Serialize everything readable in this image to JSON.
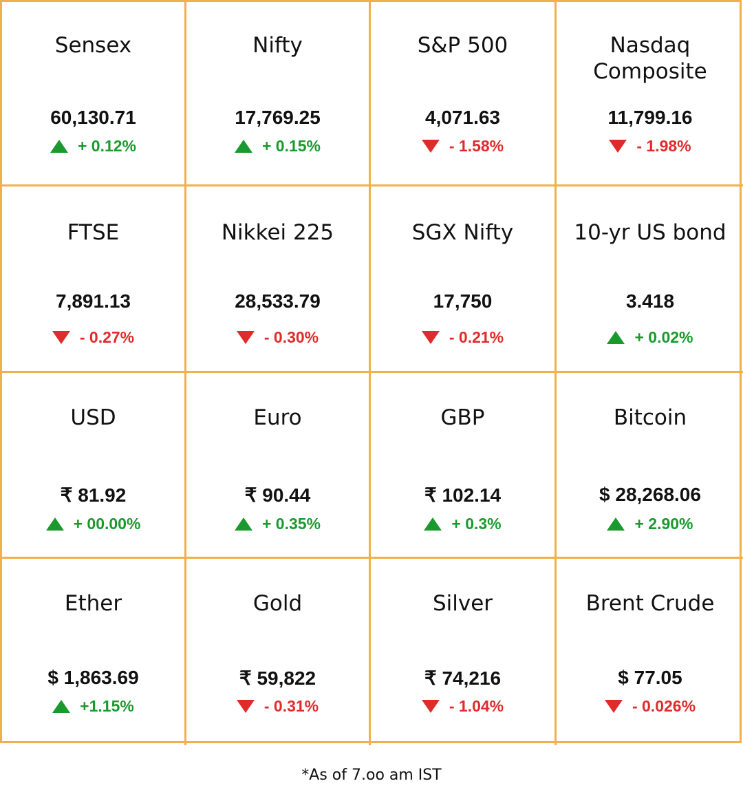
{
  "tiles": [
    {
      "name": "Sensex",
      "value": "60,130.71",
      "change": "+ 0.12%",
      "direction": "up"
    },
    {
      "name": "Nifty",
      "value": "17,769.25",
      "change": "+ 0.15%",
      "direction": "up"
    },
    {
      "name": "S&P 500",
      "value": "4,071.63",
      "change": "- 1.58%",
      "direction": "down"
    },
    {
      "name": "Nasdaq Composite",
      "value": "11,799.16",
      "change": "- 1.98%",
      "direction": "down"
    },
    {
      "name": "FTSE",
      "value": "7,891.13",
      "change": "- 0.27%",
      "direction": "down"
    },
    {
      "name": "Nikkei 225",
      "value": "28,533.79",
      "change": "- 0.30%",
      "direction": "down"
    },
    {
      "name": "SGX Nifty",
      "value": "17,750",
      "change": "- 0.21%",
      "direction": "down"
    },
    {
      "name": "10-yr US bond",
      "value": "3.418",
      "change": "+ 0.02%",
      "direction": "up"
    },
    {
      "name": "USD",
      "value": "₹ 81.92",
      "change": "+ 00.00%",
      "direction": "up"
    },
    {
      "name": "Euro",
      "value": "₹ 90.44",
      "change": "+ 0.35%",
      "direction": "up"
    },
    {
      "name": "GBP",
      "value": "₹ 102.14",
      "change": "+ 0.3%",
      "direction": "up"
    },
    {
      "name": "Bitcoin",
      "value": "$ 28,268.06",
      "change": "+ 2.90%",
      "direction": "up"
    },
    {
      "name": "Ether",
      "value": "$ 1,863.69",
      "change": "+1.15%",
      "direction": "up"
    },
    {
      "name": "Gold",
      "value": "₹ 59,822",
      "change": "- 0.31%",
      "direction": "down"
    },
    {
      "name": "Silver",
      "value": "₹ 74,216",
      "change": "- 1.04%",
      "direction": "down"
    },
    {
      "name": "Brent Crude",
      "value": "$ 77.05",
      "change": "- 0.026%",
      "direction": "down"
    }
  ],
  "colors": {
    "border": "#f0b04a",
    "up": "#1a9a2e",
    "down": "#e02b2b"
  },
  "footnote": "*As of 7.oo am IST"
}
